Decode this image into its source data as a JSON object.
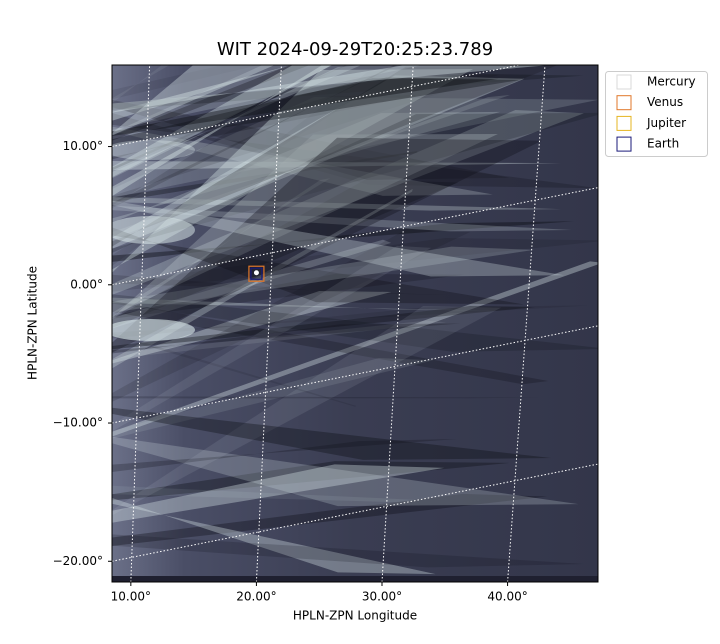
{
  "chart_data": {
    "type": "image",
    "title": "WIT 2024-09-29T20:25:23.789",
    "x_label": "HPLN-ZPN Longitude",
    "y_label": "HPLN-ZPN Latitude",
    "xlim": [
      8.5,
      47.2
    ],
    "ylim": [
      -21.5,
      15.9
    ],
    "xticks": [
      {
        "value": 10,
        "label": "10.00°"
      },
      {
        "value": 20,
        "label": "20.00°"
      },
      {
        "value": 30,
        "label": "30.00°"
      },
      {
        "value": 40,
        "label": "40.00°"
      }
    ],
    "yticks": [
      {
        "value": 10,
        "label": "10.00°"
      },
      {
        "value": 0,
        "label": "0.00°"
      },
      {
        "value": -10,
        "label": "−10.00°"
      },
      {
        "value": -20,
        "label": "−20.00°"
      }
    ],
    "grid": true,
    "legend": "upper right outside",
    "series": [
      {
        "name": "Mercury",
        "color": "#d9d9d9",
        "x": [],
        "y": []
      },
      {
        "name": "Venus",
        "color": "#e0772a",
        "x": [
          20.0
        ],
        "y": [
          0.8
        ]
      },
      {
        "name": "Jupiter",
        "color": "#e6b422",
        "x": [],
        "y": []
      },
      {
        "name": "Earth",
        "color": "#1a1a7a",
        "x": [
          20.0
        ],
        "y": [
          0.8
        ]
      }
    ]
  }
}
